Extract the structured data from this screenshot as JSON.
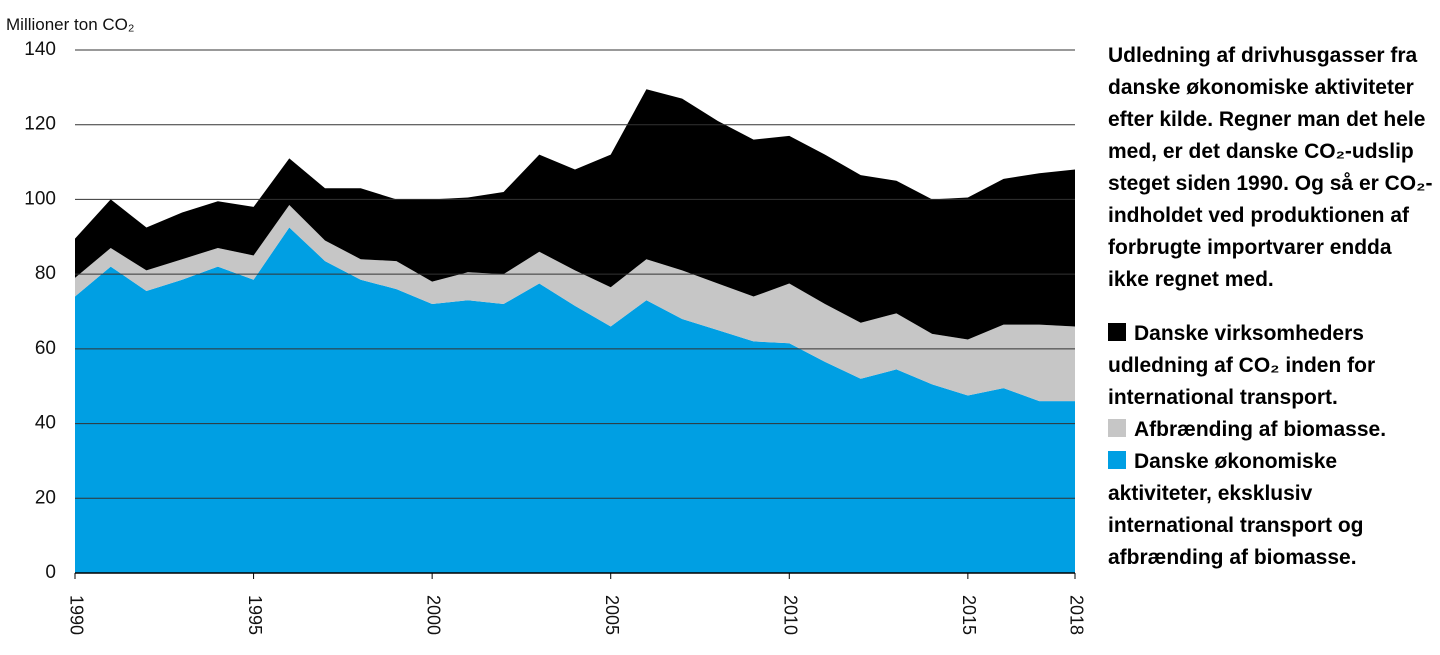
{
  "chart_data": {
    "type": "stacked-area",
    "y_label": "Millioner ton CO₂",
    "description": "Udledning af drivhusgasser fra danske økonomiske aktiviteter efter kilde. Regner man det hele med, er det danske CO₂-udslip steget siden 1990. Og så er CO₂-indholdet ved produktionen af forbrugte importvarer endda ikke regnet med.",
    "x": [
      1990,
      1991,
      1992,
      1993,
      1994,
      1995,
      1996,
      1997,
      1998,
      1999,
      2000,
      2001,
      2002,
      2003,
      2004,
      2005,
      2006,
      2007,
      2008,
      2009,
      2010,
      2011,
      2012,
      2013,
      2014,
      2015,
      2016,
      2017,
      2018
    ],
    "series": [
      {
        "name": "Danske økonomiske aktiviteter, eksklusiv international transport og afbrænding af biomasse.",
        "color": "#009fe3",
        "values": [
          74,
          82,
          75.5,
          78.5,
          82,
          78.5,
          92.5,
          83.5,
          78.5,
          76,
          72,
          73,
          72,
          77.5,
          71.5,
          66,
          73,
          68,
          65,
          62,
          61.5,
          56.5,
          52,
          54.5,
          50.5,
          47.5,
          49.5,
          46,
          46
        ]
      },
      {
        "name": "Afbrænding af biomasse.",
        "color": "#c6c6c6",
        "values": [
          5,
          5,
          5.5,
          5.5,
          5,
          6.5,
          6,
          5.5,
          5.5,
          7.5,
          6,
          7.5,
          8,
          8.5,
          9.5,
          10.5,
          11,
          13,
          12.5,
          12,
          16,
          15.5,
          15,
          15,
          13.5,
          15,
          17,
          20.5,
          20
        ]
      },
      {
        "name": "Danske virksomheders udledning af CO₂ inden for international transport.",
        "color": "#000000",
        "values": [
          10.5,
          13,
          11.5,
          12.5,
          12.5,
          13,
          12.5,
          14,
          19,
          16.5,
          22,
          20,
          22,
          26,
          27,
          35.5,
          45.5,
          46,
          43.5,
          42,
          39.5,
          40,
          39.5,
          35.5,
          36,
          38,
          39,
          40.5,
          42
        ]
      }
    ],
    "xlim": [
      1990,
      2018
    ],
    "xticks": [
      1990,
      1995,
      2000,
      2005,
      2010,
      2015,
      2018
    ],
    "ylim": [
      0,
      140
    ],
    "yticks": [
      0,
      20,
      40,
      60,
      80,
      100,
      120,
      140
    ],
    "grid": true
  }
}
